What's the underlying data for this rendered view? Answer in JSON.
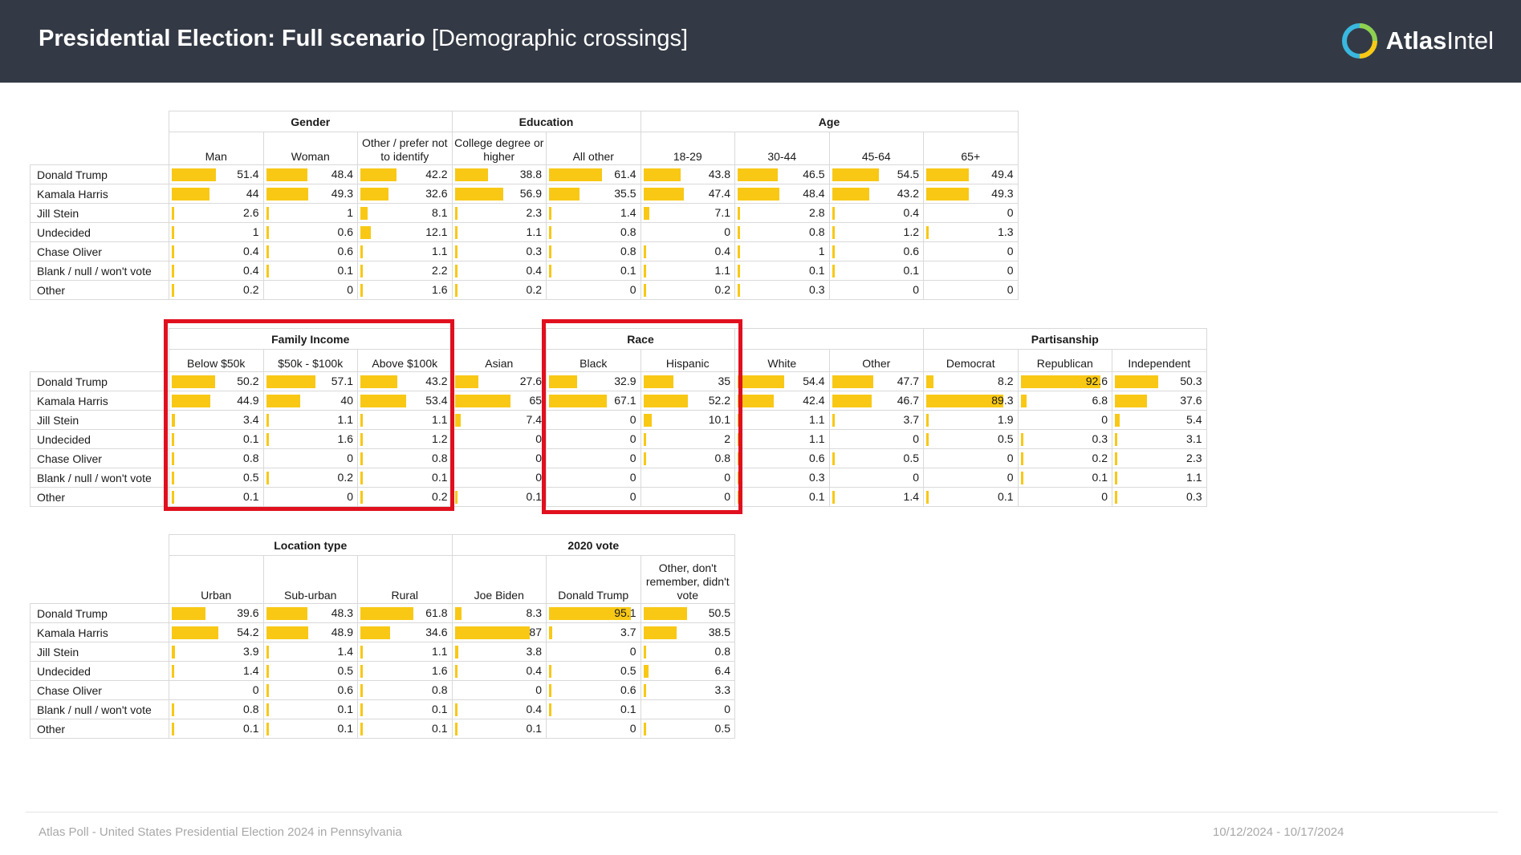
{
  "header": {
    "title_bold": "Presidential Election: Full scenario",
    "title_light": "[Demographic crossings]",
    "logo_bold": "Atlas",
    "logo_light": "Intel"
  },
  "colors": {
    "bar": "#f8c815",
    "highlight": "#e0101e",
    "header_bg": "#343a45"
  },
  "tables": {
    "t1": {
      "groups": [
        {
          "label": "Gender",
          "span": 3
        },
        {
          "label": "Education",
          "span": 2
        },
        {
          "label": "Age",
          "span": 4
        }
      ],
      "columns": [
        "Man",
        "Woman",
        "Other / prefer not to identify",
        "College degree or higher",
        "All other",
        "18-29",
        "30-44",
        "45-64",
        "65+"
      ],
      "rows": [
        {
          "label": "Donald Trump",
          "values": [
            51.4,
            48.4,
            42.2,
            38.8,
            61.4,
            43.8,
            46.5,
            54.5,
            49.4
          ]
        },
        {
          "label": "Kamala Harris",
          "values": [
            44,
            49.3,
            32.6,
            56.9,
            35.5,
            47.4,
            48.4,
            43.2,
            49.3
          ]
        },
        {
          "label": "Jill Stein",
          "values": [
            2.6,
            1,
            8.1,
            2.3,
            1.4,
            7.1,
            2.8,
            0.4,
            0
          ]
        },
        {
          "label": "Undecided",
          "values": [
            1,
            0.6,
            12.1,
            1.1,
            0.8,
            0,
            0.8,
            1.2,
            1.3
          ]
        },
        {
          "label": "Chase Oliver",
          "values": [
            0.4,
            0.6,
            1.1,
            0.3,
            0.8,
            0.4,
            1,
            0.6,
            0
          ]
        },
        {
          "label": "Blank / null / won't vote",
          "values": [
            0.4,
            0.1,
            2.2,
            0.4,
            0.1,
            1.1,
            0.1,
            0.1,
            0
          ]
        },
        {
          "label": "Other",
          "values": [
            0.2,
            0,
            1.6,
            0.2,
            0,
            0.2,
            0.3,
            0,
            0
          ]
        }
      ]
    },
    "t2": {
      "groups": [
        {
          "label": "Family Income",
          "span": 3
        },
        {
          "label": "",
          "span": 1
        },
        {
          "label": "Race",
          "span": 2
        },
        {
          "label": "",
          "span": 2
        },
        {
          "label": "Partisanship",
          "span": 3
        }
      ],
      "columns": [
        "Below $50k",
        "$50k - $100k",
        "Above $100k",
        "Asian",
        "Black",
        "Hispanic",
        "White",
        "Other",
        "Democrat",
        "Republican",
        "Independent"
      ],
      "rows": [
        {
          "label": "Donald Trump",
          "values": [
            50.2,
            57.1,
            43.2,
            27.6,
            32.9,
            35,
            54.4,
            47.7,
            8.2,
            92.6,
            50.3
          ]
        },
        {
          "label": "Kamala Harris",
          "values": [
            44.9,
            40,
            53.4,
            65,
            67.1,
            52.2,
            42.4,
            46.7,
            89.3,
            6.8,
            37.6
          ]
        },
        {
          "label": "Jill Stein",
          "values": [
            3.4,
            1.1,
            1.1,
            7.4,
            0,
            10.1,
            1.1,
            3.7,
            1.9,
            0,
            5.4
          ]
        },
        {
          "label": "Undecided",
          "values": [
            0.1,
            1.6,
            1.2,
            0,
            0,
            2,
            1.1,
            0,
            0.5,
            0.3,
            3.1
          ]
        },
        {
          "label": "Chase Oliver",
          "values": [
            0.8,
            0,
            0.8,
            0,
            0,
            0.8,
            0.6,
            0.5,
            0,
            0.2,
            2.3
          ]
        },
        {
          "label": "Blank / null / won't vote",
          "values": [
            0.5,
            0.2,
            0.1,
            0,
            0,
            0,
            0.3,
            0,
            0,
            0.1,
            1.1
          ]
        },
        {
          "label": "Other",
          "values": [
            0.1,
            0,
            0.2,
            0.1,
            0,
            0,
            0.1,
            1.4,
            0.1,
            0,
            0.3
          ]
        }
      ]
    },
    "t3": {
      "groups": [
        {
          "label": "Location type",
          "span": 3
        },
        {
          "label": "2020 vote",
          "span": 3
        }
      ],
      "columns": [
        "Urban",
        "Sub-urban",
        "Rural",
        "Joe Biden",
        "Donald Trump",
        "Other, don't remember, didn't vote"
      ],
      "rows": [
        {
          "label": "Donald Trump",
          "values": [
            39.6,
            48.3,
            61.8,
            8.3,
            95.1,
            50.5
          ]
        },
        {
          "label": "Kamala Harris",
          "values": [
            54.2,
            48.9,
            34.6,
            87,
            3.7,
            38.5
          ]
        },
        {
          "label": "Jill Stein",
          "values": [
            3.9,
            1.4,
            1.1,
            3.8,
            0,
            0.8
          ]
        },
        {
          "label": "Undecided",
          "values": [
            1.4,
            0.5,
            1.6,
            0.4,
            0.5,
            6.4
          ]
        },
        {
          "label": "Chase Oliver",
          "values": [
            0,
            0.6,
            0.8,
            0,
            0.6,
            3.3
          ]
        },
        {
          "label": "Blank / null / won't vote",
          "values": [
            0.8,
            0.1,
            0.1,
            0.4,
            0.1,
            0
          ]
        },
        {
          "label": "Other",
          "values": [
            0.1,
            0.1,
            0.1,
            0.1,
            0,
            0.5
          ]
        }
      ]
    }
  },
  "footer": {
    "left": "Atlas Poll - United States Presidential Election 2024 in Pennsylvania",
    "right": "10/12/2024 - 10/17/2024"
  }
}
